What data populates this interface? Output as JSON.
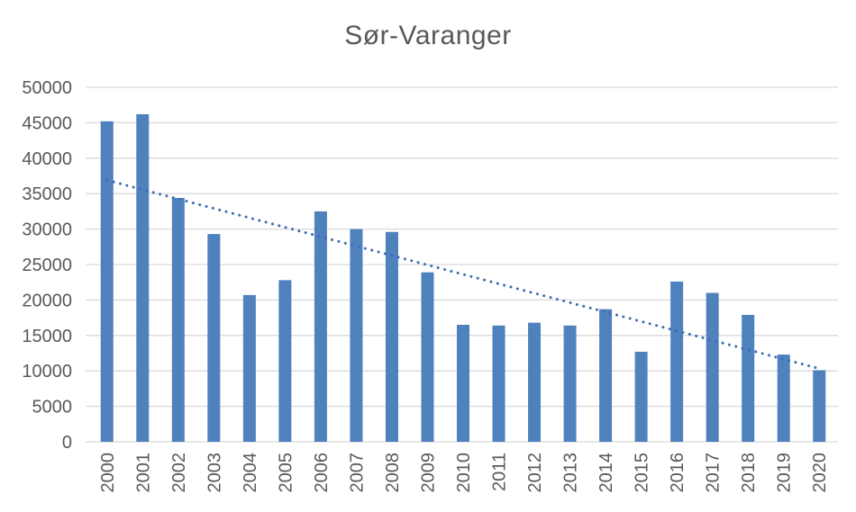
{
  "chart_data": {
    "type": "bar",
    "title": "Sør-Varanger",
    "categories": [
      "2000",
      "2001",
      "2002",
      "2003",
      "2004",
      "2005",
      "2006",
      "2007",
      "2008",
      "2009",
      "2010",
      "2011",
      "2012",
      "2013",
      "2014",
      "2015",
      "2016",
      "2017",
      "2018",
      "2019",
      "2020"
    ],
    "values": [
      45200,
      46200,
      34400,
      29300,
      20700,
      22800,
      32500,
      30000,
      29600,
      23900,
      16500,
      16400,
      16800,
      16400,
      18700,
      12700,
      22600,
      21000,
      17900,
      12300,
      10100
    ],
    "xlabel": "",
    "ylabel": "",
    "ylim": [
      0,
      50000
    ],
    "ytick_step": 5000,
    "ytick_labels": [
      "0",
      "5000",
      "10000",
      "15000",
      "20000",
      "25000",
      "30000",
      "35000",
      "40000",
      "45000",
      "50000"
    ],
    "x_labels_rotation_degrees": -90,
    "grid": true,
    "legend": false,
    "trendline": {
      "type": "linear",
      "style": "dotted",
      "start_value": 36900,
      "end_value": 10330
    }
  },
  "colors": {
    "background": "#FFFFFF",
    "bar": "#4F81BD",
    "trendline": "#3E6DB5",
    "gridline": "#D9D9D9",
    "axis_text": "#595959",
    "title_text": "#595959"
  }
}
